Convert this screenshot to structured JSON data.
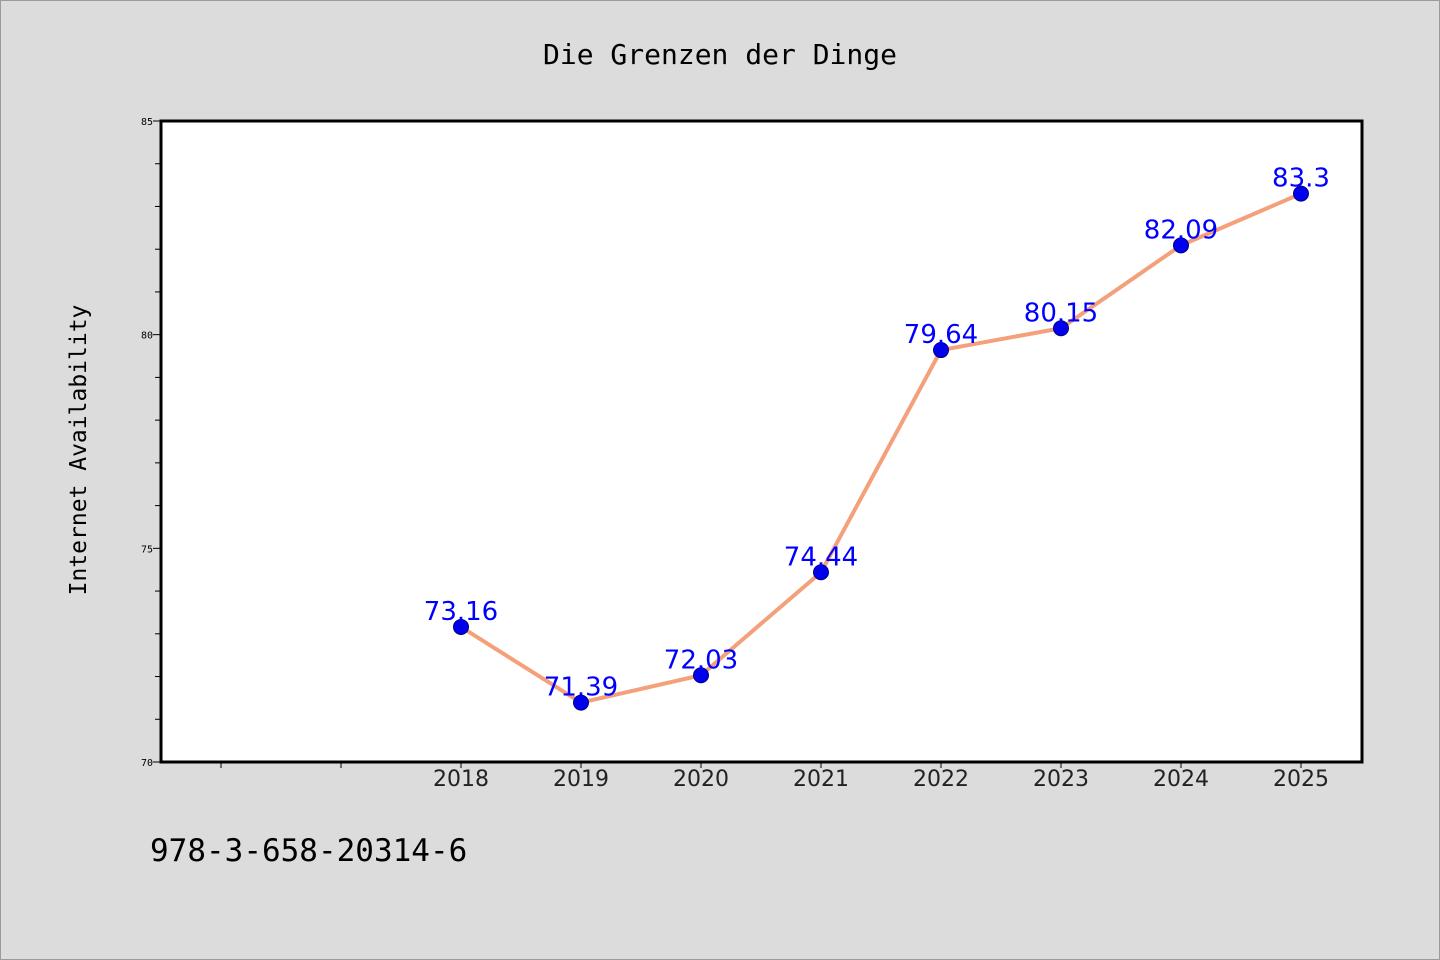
{
  "chart_data": {
    "type": "line",
    "title": "Die Grenzen der Dinge",
    "xlabel": "",
    "ylabel": "Internet Availability",
    "categories": [
      "2018",
      "2019",
      "2020",
      "2021",
      "2022",
      "2023",
      "2024",
      "2025"
    ],
    "series": [
      {
        "values": [
          73.16,
          71.39,
          72.03,
          74.44,
          79.64,
          80.15,
          82.09,
          83.3
        ],
        "data_labels": [
          "73.16",
          "71.39",
          "72.03",
          "74.44",
          "79.64",
          "80.15",
          "82.09",
          "83.3"
        ]
      }
    ],
    "ylim": [
      70,
      85
    ],
    "y_ticks": [
      "70",
      "75",
      "80",
      "85"
    ],
    "grid": false,
    "legend": "none",
    "colors": {
      "line": "#f4a07a",
      "marker": "#0000ee",
      "marker_edge": "#000080",
      "data_label": "#0000ff",
      "plot_background": "#ffffff",
      "figure_background": "#dcdcdc"
    }
  },
  "footer": {
    "isbn": "978-3-658-20314-6"
  }
}
